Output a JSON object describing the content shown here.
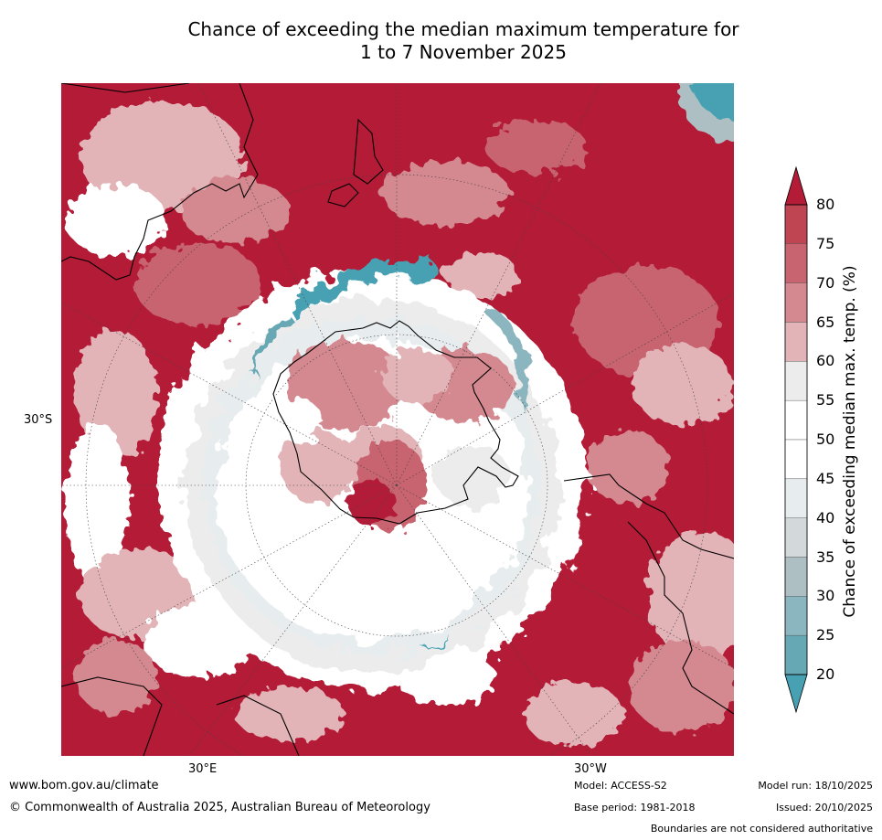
{
  "title_line1": "Chance of exceeding the median maximum temperature for",
  "title_line2": "1 to 7 November 2025",
  "map": {
    "lat_label": "30°S",
    "lon_label_east": "30°E",
    "lon_label_west": "30°W",
    "projection": "south-polar stereographic",
    "dominant_category": "80+",
    "polar_ring_category": "45-55",
    "low_chance_band": "20-35"
  },
  "colorbar": {
    "title": "Chance of exceeding median max. temp. (%)",
    "ticks": [
      "80",
      "75",
      "70",
      "65",
      "60",
      "55",
      "50",
      "45",
      "40",
      "35",
      "30",
      "25",
      "20"
    ],
    "colors": {
      "above_80": "#b31b37",
      "75_80": "#bf4553",
      "70_75": "#c86470",
      "65_70": "#d4888f",
      "60_65": "#e2b4b7",
      "55_60": "#ececec",
      "50_55": "#ffffff",
      "45_50": "#ffffff",
      "40_45": "#e7ecee",
      "35_40": "#d3d8da",
      "30_35": "#aebfc4",
      "25_30": "#8bb6c0",
      "20_25": "#67a8b5",
      "below_20": "#47a1b3"
    }
  },
  "footer": {
    "website": "www.bom.gov.au/climate",
    "copyright": "© Commonwealth of Australia 2025, Australian Bureau of Meteorology",
    "model": "Model: ACCESS-S2",
    "base_period": "Base period: 1981-2018",
    "model_run": "Model run: 18/10/2025",
    "issued": "Issued: 20/10/2025",
    "disclaimer": "Boundaries are not considered authoritative"
  }
}
